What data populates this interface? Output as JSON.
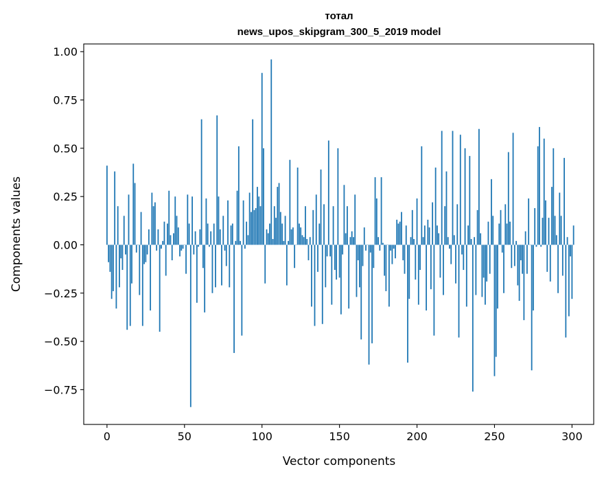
{
  "chart_data": {
    "type": "bar",
    "title": [
      "тотал",
      "news_upos_skipgram_300_5_2019 model"
    ],
    "xlabel": "Vector components",
    "ylabel": "Components values",
    "xlim": [
      -15,
      314
    ],
    "ylim": [
      -0.93,
      1.04
    ],
    "xticks": [
      0,
      50,
      100,
      150,
      200,
      250,
      300
    ],
    "xtick_labels": [
      "0",
      "50",
      "100",
      "150",
      "200",
      "250",
      "300"
    ],
    "yticks": [
      1.0,
      0.75,
      0.5,
      0.25,
      0.0,
      -0.25,
      -0.5,
      -0.75
    ],
    "ytick_labels": [
      "1.00",
      "0.75",
      "0.50",
      "0.25",
      "0.00",
      "−0.25",
      "−0.50",
      "−0.75"
    ],
    "bar_color": "#1f77b4",
    "grid": false,
    "values": [
      0.41,
      -0.09,
      -0.14,
      -0.28,
      -0.24,
      0.38,
      -0.33,
      0.2,
      -0.22,
      -0.07,
      -0.13,
      0.15,
      -0.05,
      -0.44,
      0.26,
      -0.42,
      -0.2,
      0.42,
      0.32,
      -0.04,
      0.0,
      -0.26,
      0.17,
      -0.42,
      -0.1,
      -0.09,
      -0.05,
      0.08,
      -0.34,
      0.27,
      0.2,
      0.22,
      -0.03,
      0.08,
      -0.45,
      -0.02,
      0.02,
      0.12,
      -0.16,
      0.11,
      0.28,
      0.05,
      -0.08,
      0.06,
      0.25,
      0.15,
      0.09,
      -0.06,
      -0.03,
      -0.02,
      0.0,
      -0.15,
      0.26,
      0.11,
      -0.84,
      0.25,
      -0.05,
      0.07,
      -0.3,
      -0.01,
      0.08,
      0.65,
      -0.12,
      -0.35,
      0.24,
      0.11,
      -0.01,
      0.07,
      -0.25,
      0.11,
      -0.22,
      0.67,
      0.25,
      0.08,
      -0.21,
      0.15,
      -0.03,
      -0.11,
      0.23,
      -0.22,
      0.1,
      0.11,
      -0.56,
      0.02,
      0.28,
      0.51,
      0.02,
      -0.47,
      0.23,
      -0.02,
      0.12,
      0.05,
      0.27,
      0.17,
      0.65,
      0.18,
      0.19,
      0.3,
      0.25,
      0.2,
      0.89,
      0.5,
      -0.2,
      0.08,
      0.06,
      0.11,
      0.96,
      0.03,
      0.2,
      0.14,
      0.3,
      0.32,
      0.17,
      0.11,
      0.02,
      0.15,
      -0.21,
      0.02,
      0.44,
      0.08,
      0.09,
      -0.12,
      0.0,
      0.4,
      0.11,
      0.09,
      0.05,
      0.04,
      0.2,
      0.03,
      -0.08,
      0.04,
      -0.32,
      0.18,
      -0.42,
      0.26,
      -0.14,
      0.11,
      0.39,
      -0.41,
      0.21,
      -0.22,
      -0.06,
      0.54,
      -0.06,
      -0.31,
      0.2,
      -0.13,
      -0.18,
      0.5,
      -0.17,
      -0.36,
      -0.05,
      0.31,
      0.06,
      0.2,
      -0.33,
      0.04,
      0.07,
      0.04,
      0.26,
      -0.27,
      -0.08,
      -0.22,
      -0.49,
      -0.11,
      0.09,
      -0.03,
      0.0,
      -0.62,
      -0.04,
      -0.51,
      -0.12,
      0.35,
      0.24,
      0.04,
      -0.03,
      0.35,
      0.01,
      -0.16,
      -0.24,
      0.0,
      -0.32,
      -0.03,
      -0.1,
      -0.02,
      -0.07,
      0.13,
      0.11,
      0.12,
      0.17,
      -0.08,
      -0.15,
      0.1,
      -0.61,
      -0.28,
      0.04,
      0.18,
      0.03,
      -0.18,
      0.24,
      -0.31,
      -0.13,
      0.51,
      0.04,
      0.1,
      -0.34,
      0.13,
      0.09,
      -0.23,
      0.22,
      -0.47,
      0.4,
      0.1,
      0.06,
      -0.17,
      0.59,
      -0.26,
      0.2,
      0.38,
      0.04,
      -0.02,
      -0.1,
      0.59,
      0.05,
      -0.2,
      0.21,
      -0.48,
      0.57,
      -0.05,
      -0.13,
      0.5,
      -0.32,
      0.1,
      0.46,
      0.03,
      -0.76,
      0.04,
      -0.26,
      0.18,
      0.6,
      0.06,
      -0.27,
      -0.17,
      -0.31,
      -0.19,
      0.12,
      -0.15,
      0.34,
      0.15,
      -0.68,
      -0.58,
      -0.33,
      0.11,
      0.18,
      -0.04,
      -0.25,
      0.21,
      0.11,
      0.48,
      0.12,
      -0.12,
      0.58,
      -0.11,
      0.02,
      -0.21,
      -0.29,
      -0.08,
      -0.15,
      -0.39,
      0.07,
      -0.15,
      0.24,
      0.0,
      -0.65,
      -0.34,
      0.19,
      -0.01,
      0.51,
      0.61,
      -0.01,
      0.14,
      0.55,
      0.23,
      -0.14,
      0.14,
      -0.19,
      0.3,
      0.5,
      0.15,
      0.05,
      -0.25,
      0.27,
      0.15,
      -0.16,
      0.45,
      -0.48,
      0.04,
      -0.37,
      -0.06,
      -0.28,
      0.1
    ]
  }
}
